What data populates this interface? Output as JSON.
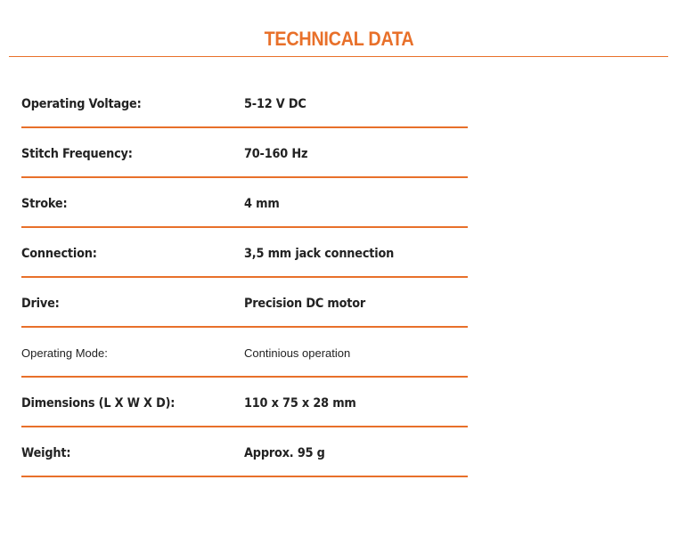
{
  "title": "TECHNICAL DATA",
  "accent_color": "#e8702a",
  "rows": [
    {
      "label": "Operating Voltage:",
      "value": "5-12 V DC"
    },
    {
      "label": "Stitch Frequency:",
      "value": "70-160 Hz"
    },
    {
      "label": "Stroke:",
      "value": "4 mm"
    },
    {
      "label": "Connection:",
      "value": "3,5 mm jack connection"
    },
    {
      "label": "Drive:",
      "value": "Precision DC motor"
    },
    {
      "label": "Operating Mode:",
      "value": "Continious operation"
    },
    {
      "label": "Dimensions (L X W X D):",
      "value": "110 x 75 x 28 mm"
    },
    {
      "label": "Weight:",
      "value": "Approx. 95 g"
    }
  ]
}
